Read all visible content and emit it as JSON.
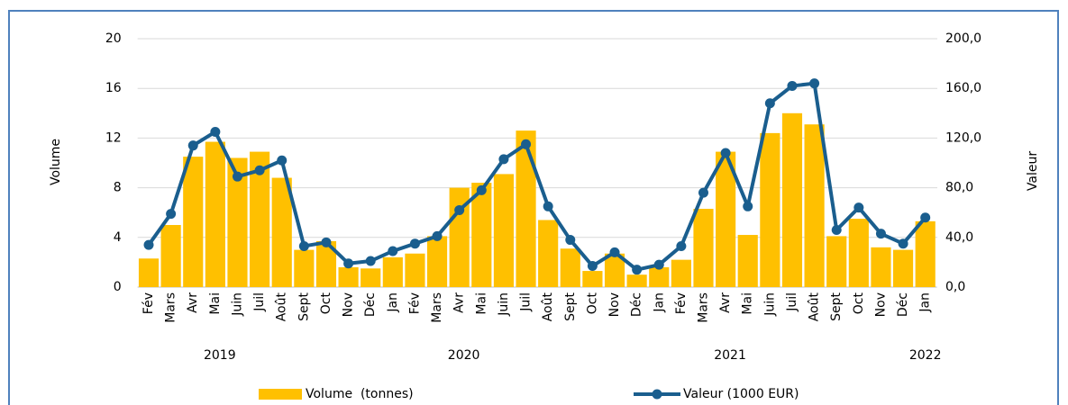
{
  "chart_data": {
    "type": "bar-line",
    "y_label": "Volume",
    "y2_label": "Valeur",
    "categories": [
      "Fév",
      "Mars",
      "Avr",
      "Mai",
      "Juin",
      "Juil",
      "Août",
      "Sept",
      "Oct",
      "Nov",
      "Déc",
      "Jan",
      "Fév",
      "Mars",
      "Avr",
      "Mai",
      "Juin",
      "Juil",
      "Août",
      "Sept",
      "Oct",
      "Nov",
      "Déc",
      "Jan",
      "Fév",
      "Mars",
      "Avr",
      "Mai",
      "Juin",
      "Juil",
      "Août",
      "Sept",
      "Oct",
      "Nov",
      "Déc",
      "Jan"
    ],
    "years": [
      "2019",
      "2020",
      "2021",
      "2022"
    ],
    "series": [
      {
        "name": "Volume  (tonnes)",
        "type": "bar",
        "color": "#ffc000",
        "values": [
          2.3,
          5.0,
          10.5,
          11.7,
          10.4,
          10.9,
          8.8,
          3.0,
          3.7,
          1.6,
          1.5,
          2.4,
          2.7,
          4.1,
          8.0,
          8.4,
          9.1,
          12.6,
          5.4,
          3.1,
          1.3,
          2.7,
          1.0,
          1.6,
          2.2,
          6.3,
          10.9,
          4.2,
          12.4,
          14.0,
          13.1,
          4.1,
          5.5,
          3.2,
          3.0,
          5.3
        ]
      },
      {
        "name": "Valeur (1000 EUR)",
        "type": "line",
        "axis": "y2",
        "color": "#1a5e8e",
        "values": [
          34,
          59,
          114,
          125,
          89,
          94,
          102,
          33,
          36,
          19,
          21,
          29,
          35,
          41,
          62,
          78,
          103,
          115,
          65,
          38,
          17,
          28,
          14,
          18,
          33,
          76,
          108,
          65,
          148,
          162,
          164,
          46,
          64,
          43,
          35,
          56
        ]
      }
    ],
    "ylim": [
      0,
      20
    ],
    "yticks": [
      0,
      4,
      8,
      12,
      16,
      20
    ],
    "y2lim": [
      0,
      200
    ],
    "y2ticks": [
      {
        "value": 0,
        "label": "0,0"
      },
      {
        "value": 40,
        "label": "40,0"
      },
      {
        "value": 80,
        "label": "80,0"
      },
      {
        "value": 120,
        "label": "120,0"
      },
      {
        "value": 160,
        "label": "160,0"
      },
      {
        "value": 200,
        "label": "200,0"
      }
    ],
    "grid": true,
    "legend": "bottom"
  }
}
